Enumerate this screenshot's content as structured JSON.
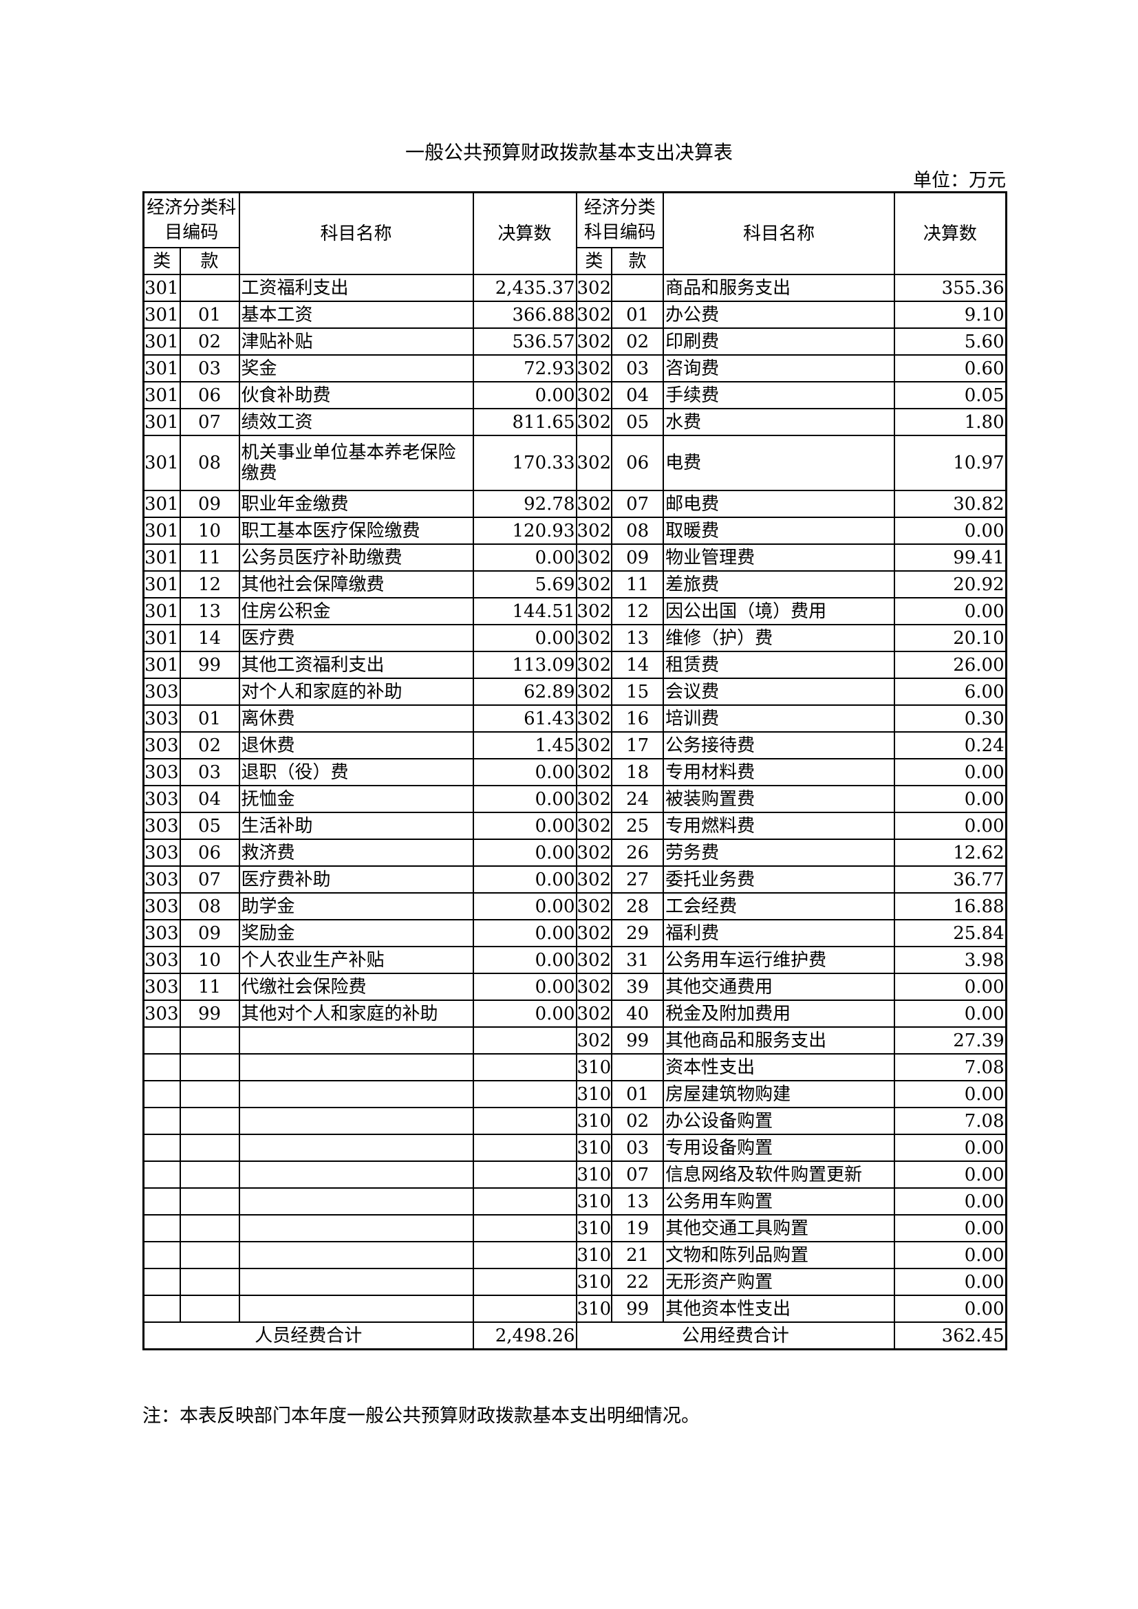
{
  "title": "一般公共预算财政拨款基本支出决算表",
  "unit": "单位：万元",
  "header": {
    "econ_code": "经济分类科目编码",
    "category": "类",
    "item": "款",
    "subject_name": "科目名称",
    "amount": "决算数"
  },
  "left_rows": [
    {
      "cat": "301",
      "item": "",
      "name": "工资福利支出",
      "amount": "2,435.37"
    },
    {
      "cat": "301",
      "item": "01",
      "name": "基本工资",
      "amount": "366.88"
    },
    {
      "cat": "301",
      "item": "02",
      "name": "津贴补贴",
      "amount": "536.57"
    },
    {
      "cat": "301",
      "item": "03",
      "name": "奖金",
      "amount": "72.93"
    },
    {
      "cat": "301",
      "item": "06",
      "name": "伙食补助费",
      "amount": "0.00"
    },
    {
      "cat": "301",
      "item": "07",
      "name": "绩效工资",
      "amount": "811.65"
    },
    {
      "cat": "301",
      "item": "08",
      "name": "机关事业单位基本养老保险缴费",
      "amount": "170.33"
    },
    {
      "cat": "301",
      "item": "09",
      "name": "职业年金缴费",
      "amount": "92.78"
    },
    {
      "cat": "301",
      "item": "10",
      "name": "职工基本医疗保险缴费",
      "amount": "120.93"
    },
    {
      "cat": "301",
      "item": "11",
      "name": "公务员医疗补助缴费",
      "amount": "0.00"
    },
    {
      "cat": "301",
      "item": "12",
      "name": "其他社会保障缴费",
      "amount": "5.69"
    },
    {
      "cat": "301",
      "item": "13",
      "name": "住房公积金",
      "amount": "144.51"
    },
    {
      "cat": "301",
      "item": "14",
      "name": "医疗费",
      "amount": "0.00"
    },
    {
      "cat": "301",
      "item": "99",
      "name": "其他工资福利支出",
      "amount": "113.09"
    },
    {
      "cat": "303",
      "item": "",
      "name": "对个人和家庭的补助",
      "amount": "62.89"
    },
    {
      "cat": "303",
      "item": "01",
      "name": "离休费",
      "amount": "61.43"
    },
    {
      "cat": "303",
      "item": "02",
      "name": "退休费",
      "amount": "1.45"
    },
    {
      "cat": "303",
      "item": "03",
      "name": "退职（役）费",
      "amount": "0.00"
    },
    {
      "cat": "303",
      "item": "04",
      "name": "抚恤金",
      "amount": "0.00"
    },
    {
      "cat": "303",
      "item": "05",
      "name": "生活补助",
      "amount": "0.00"
    },
    {
      "cat": "303",
      "item": "06",
      "name": "救济费",
      "amount": "0.00"
    },
    {
      "cat": "303",
      "item": "07",
      "name": "医疗费补助",
      "amount": "0.00"
    },
    {
      "cat": "303",
      "item": "08",
      "name": "助学金",
      "amount": "0.00"
    },
    {
      "cat": "303",
      "item": "09",
      "name": "奖励金",
      "amount": "0.00"
    },
    {
      "cat": "303",
      "item": "10",
      "name": "个人农业生产补贴",
      "amount": "0.00"
    },
    {
      "cat": "303",
      "item": "11",
      "name": "代缴社会保险费",
      "amount": "0.00"
    },
    {
      "cat": "303",
      "item": "99",
      "name": "其他对个人和家庭的补助",
      "amount": "0.00"
    }
  ],
  "right_rows": [
    {
      "cat": "302",
      "item": "",
      "name": "商品和服务支出",
      "amount": "355.36"
    },
    {
      "cat": "302",
      "item": "01",
      "name": "办公费",
      "amount": "9.10"
    },
    {
      "cat": "302",
      "item": "02",
      "name": "印刷费",
      "amount": "5.60"
    },
    {
      "cat": "302",
      "item": "03",
      "name": "咨询费",
      "amount": "0.60"
    },
    {
      "cat": "302",
      "item": "04",
      "name": "手续费",
      "amount": "0.05"
    },
    {
      "cat": "302",
      "item": "05",
      "name": "水费",
      "amount": "1.80"
    },
    {
      "cat": "302",
      "item": "06",
      "name": "电费",
      "amount": "10.97"
    },
    {
      "cat": "302",
      "item": "07",
      "name": "邮电费",
      "amount": "30.82"
    },
    {
      "cat": "302",
      "item": "08",
      "name": "取暖费",
      "amount": "0.00"
    },
    {
      "cat": "302",
      "item": "09",
      "name": "物业管理费",
      "amount": "99.41"
    },
    {
      "cat": "302",
      "item": "11",
      "name": "差旅费",
      "amount": "20.92"
    },
    {
      "cat": "302",
      "item": "12",
      "name": "因公出国（境）费用",
      "amount": "0.00"
    },
    {
      "cat": "302",
      "item": "13",
      "name": "维修（护）费",
      "amount": "20.10"
    },
    {
      "cat": "302",
      "item": "14",
      "name": "租赁费",
      "amount": "26.00"
    },
    {
      "cat": "302",
      "item": "15",
      "name": "会议费",
      "amount": "6.00"
    },
    {
      "cat": "302",
      "item": "16",
      "name": "培训费",
      "amount": "0.30"
    },
    {
      "cat": "302",
      "item": "17",
      "name": "公务接待费",
      "amount": "0.24"
    },
    {
      "cat": "302",
      "item": "18",
      "name": "专用材料费",
      "amount": "0.00"
    },
    {
      "cat": "302",
      "item": "24",
      "name": "被装购置费",
      "amount": "0.00"
    },
    {
      "cat": "302",
      "item": "25",
      "name": "专用燃料费",
      "amount": "0.00"
    },
    {
      "cat": "302",
      "item": "26",
      "name": "劳务费",
      "amount": "12.62"
    },
    {
      "cat": "302",
      "item": "27",
      "name": "委托业务费",
      "amount": "36.77"
    },
    {
      "cat": "302",
      "item": "28",
      "name": "工会经费",
      "amount": "16.88"
    },
    {
      "cat": "302",
      "item": "29",
      "name": "福利费",
      "amount": "25.84"
    },
    {
      "cat": "302",
      "item": "31",
      "name": "公务用车运行维护费",
      "amount": "3.98"
    },
    {
      "cat": "302",
      "item": "39",
      "name": "其他交通费用",
      "amount": "0.00"
    },
    {
      "cat": "302",
      "item": "40",
      "name": "税金及附加费用",
      "amount": "0.00"
    },
    {
      "cat": "302",
      "item": "99",
      "name": "其他商品和服务支出",
      "amount": "27.39"
    },
    {
      "cat": "310",
      "item": "",
      "name": "资本性支出",
      "amount": "7.08"
    },
    {
      "cat": "310",
      "item": "01",
      "name": "房屋建筑物购建",
      "amount": "0.00"
    },
    {
      "cat": "310",
      "item": "02",
      "name": "办公设备购置",
      "amount": "7.08"
    },
    {
      "cat": "310",
      "item": "03",
      "name": "专用设备购置",
      "amount": "0.00"
    },
    {
      "cat": "310",
      "item": "07",
      "name": "信息网络及软件购置更新",
      "amount": "0.00"
    },
    {
      "cat": "310",
      "item": "13",
      "name": "公务用车购置",
      "amount": "0.00"
    },
    {
      "cat": "310",
      "item": "19",
      "name": "其他交通工具购置",
      "amount": "0.00"
    },
    {
      "cat": "310",
      "item": "21",
      "name": "文物和陈列品购置",
      "amount": "0.00"
    },
    {
      "cat": "310",
      "item": "22",
      "name": "无形资产购置",
      "amount": "0.00"
    },
    {
      "cat": "310",
      "item": "99",
      "name": "其他资本性支出",
      "amount": "0.00"
    }
  ],
  "totals": {
    "personnel_label": "人员经费合计",
    "personnel_amount": "2,498.26",
    "public_label": "公用经费合计",
    "public_amount": "362.45"
  },
  "note": "注：本表反映部门本年度一般公共预算财政拨款基本支出明细情况。"
}
